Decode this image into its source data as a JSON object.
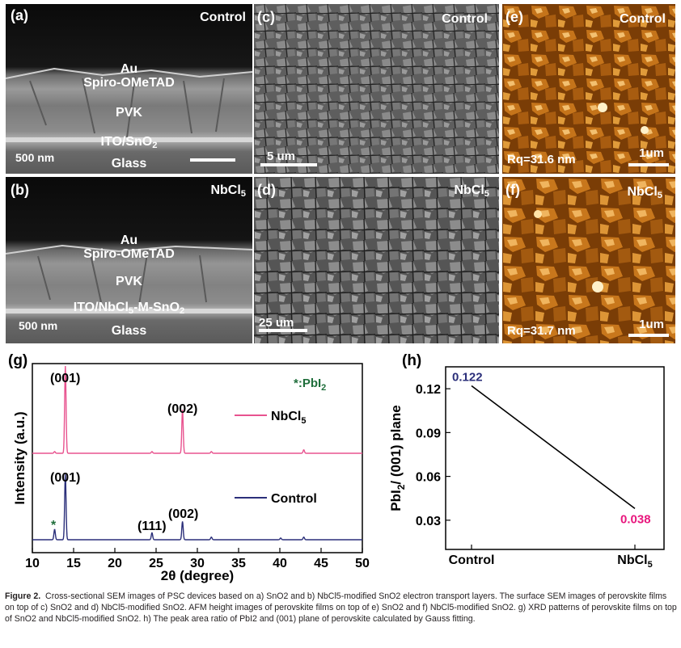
{
  "panels": {
    "a": {
      "label": "(a)",
      "title": "Control",
      "layers": [
        "Au",
        "Spiro-OMeTAD",
        "PVK",
        "ITO/SnO",
        "Glass"
      ],
      "scalebar": "500 nm"
    },
    "b": {
      "label": "(b)",
      "title": "NbCl",
      "layers": [
        "Au",
        "Spiro-OMeTAD",
        "PVK",
        "ITO/NbCl",
        "-M-SnO",
        "Glass"
      ],
      "scalebar": "500 nm"
    },
    "c": {
      "label": "(c)",
      "title": "Control",
      "scalebar": "5 um"
    },
    "d": {
      "label": "(d)",
      "title": "NbCl",
      "scalebar": "25 um"
    },
    "e": {
      "label": "(e)",
      "title": "Control",
      "rq": "Rq=31.6 nm",
      "scalebar": "1um"
    },
    "f": {
      "label": "(f)",
      "title": "NbCl",
      "rq": "Rq=31.7 nm",
      "scalebar": "1um"
    },
    "g": {
      "label": "(g)"
    },
    "h": {
      "label": "(h)"
    }
  },
  "subscripts": {
    "two": "2",
    "five": "5"
  },
  "chart_data": [
    {
      "type": "line",
      "panel": "g",
      "xlabel": "2θ (degree)",
      "ylabel": "Intensity (a.u.)",
      "xlim": [
        10,
        50
      ],
      "xticks": [
        "10",
        "15",
        "20",
        "25",
        "30",
        "35",
        "40",
        "45",
        "50"
      ],
      "legend": "right",
      "series": [
        {
          "name": "NbCl",
          "name_sub": "5",
          "color": "#e8538f",
          "peaks": [
            {
              "x": 12.7,
              "h": 0.2
            },
            {
              "x": 14.0,
              "h": 10
            },
            {
              "x": 28.2,
              "h": 5
            },
            {
              "x": 24.5,
              "h": 0.2
            },
            {
              "x": 31.7,
              "h": 0.2
            },
            {
              "x": 42.9,
              "h": 0.4
            }
          ]
        },
        {
          "name": "Control",
          "color": "#2b2f7a",
          "peaks": [
            {
              "x": 12.7,
              "h": 1.2
            },
            {
              "x": 14.0,
              "h": 7.5
            },
            {
              "x": 24.5,
              "h": 0.8
            },
            {
              "x": 28.2,
              "h": 2.1
            },
            {
              "x": 31.7,
              "h": 0.3
            },
            {
              "x": 40.1,
              "h": 0.2
            },
            {
              "x": 42.9,
              "h": 0.3
            }
          ]
        }
      ],
      "annotations": {
        "nb_001": "(001)",
        "nb_002": "(002)",
        "ct_001": "(001)",
        "ct_111": "(111)",
        "ct_002": "(002)",
        "star": "*",
        "pbi2_label": "*:PbI",
        "pbi2_sub": "2"
      }
    },
    {
      "type": "line",
      "panel": "h",
      "categories": [
        "Control",
        "NbCl"
      ],
      "category_sub": [
        "",
        "5"
      ],
      "values": [
        0.122,
        0.038
      ],
      "value_labels": [
        "0.122",
        "0.038"
      ],
      "label_colors": [
        "#2b2f7a",
        "#e8177d"
      ],
      "ylabel_parts": [
        "PbI",
        "2",
        "/ (001) plane"
      ],
      "ylim": [
        0.01,
        0.135
      ],
      "yticks": [
        "0.12",
        "0.09",
        "0.06",
        "0.03"
      ]
    }
  ],
  "caption": {
    "fig": "Figure 2.",
    "text": "Cross-sectional SEM images of PSC devices based on a) SnO2 and b) NbCl5-modified SnO2 electron transport layers. The surface SEM images of perovskite films on top of c) SnO2 and d) NbCl5-modified SnO2. AFM height images of perovskite films on top of e) SnO2 and f) NbCl5-modified SnO2. g) XRD patterns of perovskite films on top of SnO2 and NbCl5-modified SnO2. h) The peak area ratio of PbI2 and (001) plane of perovskite calculated by Gauss fitting."
  }
}
